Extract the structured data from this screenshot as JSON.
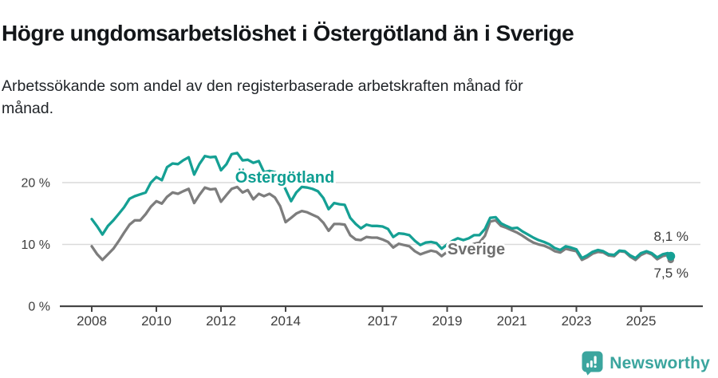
{
  "header": {
    "title": "Högre ungdomsarbetslöshet i Östergötland än i Sverige",
    "subtitle": {
      "lines": [
        "Arbetssökande som andel av den registerbaserade arbetskraften månad för",
        "månad."
      ]
    }
  },
  "chart_data": {
    "type": "line",
    "x_unit": "decimal year (monthly series)",
    "xlim": [
      2008,
      2026.2
    ],
    "ylim": [
      0,
      26
    ],
    "grid": "horizontal-light",
    "x_ticks": [
      {
        "label": "2008",
        "year": 2008
      },
      {
        "label": "2010",
        "year": 2010
      },
      {
        "label": "2012",
        "year": 2012
      },
      {
        "label": "2014",
        "year": 2014
      },
      {
        "label": "2017",
        "year": 2017
      },
      {
        "label": "2019",
        "year": 2019
      },
      {
        "label": "2021",
        "year": 2021
      },
      {
        "label": "2023",
        "year": 2023
      },
      {
        "label": "2025",
        "year": 2025
      }
    ],
    "y_ticks": [
      {
        "label": "0 %",
        "value": 0
      },
      {
        "label": "10 %",
        "value": 10
      },
      {
        "label": "20 %",
        "value": 20
      }
    ],
    "x": [
      2008.0,
      2008.17,
      2008.33,
      2008.5,
      2008.67,
      2008.83,
      2009.0,
      2009.17,
      2009.33,
      2009.5,
      2009.67,
      2009.83,
      2010.0,
      2010.17,
      2010.33,
      2010.5,
      2010.67,
      2010.83,
      2011.0,
      2011.17,
      2011.33,
      2011.5,
      2011.67,
      2011.83,
      2012.0,
      2012.17,
      2012.33,
      2012.5,
      2012.67,
      2012.83,
      2013.0,
      2013.17,
      2013.33,
      2013.5,
      2013.67,
      2013.83,
      2014.0,
      2014.17,
      2014.33,
      2014.5,
      2014.67,
      2014.83,
      2015.0,
      2015.17,
      2015.33,
      2015.5,
      2015.67,
      2015.83,
      2016.0,
      2016.17,
      2016.33,
      2016.5,
      2016.67,
      2016.83,
      2017.0,
      2017.17,
      2017.33,
      2017.5,
      2017.67,
      2017.83,
      2018.0,
      2018.17,
      2018.33,
      2018.5,
      2018.67,
      2018.83,
      2019.0,
      2019.17,
      2019.33,
      2019.5,
      2019.67,
      2019.83,
      2020.0,
      2020.17,
      2020.33,
      2020.5,
      2020.67,
      2020.83,
      2021.0,
      2021.17,
      2021.33,
      2021.5,
      2021.67,
      2021.83,
      2022.0,
      2022.17,
      2022.33,
      2022.5,
      2022.67,
      2022.83,
      2023.0,
      2023.17,
      2023.33,
      2023.5,
      2023.67,
      2023.83,
      2024.0,
      2024.17,
      2024.33,
      2024.5,
      2024.67,
      2024.83,
      2025.0,
      2025.17,
      2025.33,
      2025.5,
      2025.67,
      2025.83,
      2025.92
    ],
    "series": [
      {
        "name": "Östergötland",
        "color": "#15a094",
        "end_label": "8,1 %",
        "end_value": 8.1,
        "values": [
          14.1,
          12.9,
          11.6,
          13.0,
          13.9,
          14.9,
          16.0,
          17.4,
          17.8,
          18.1,
          18.4,
          20.0,
          20.9,
          20.4,
          22.5,
          23.1,
          23.0,
          23.6,
          24.1,
          21.3,
          23.0,
          24.3,
          24.1,
          24.2,
          22.0,
          23.0,
          24.6,
          24.8,
          23.6,
          23.7,
          23.2,
          23.5,
          21.7,
          21.9,
          21.7,
          20.8,
          18.9,
          17.0,
          18.4,
          19.3,
          19.2,
          19.0,
          18.6,
          17.5,
          15.7,
          16.7,
          16.5,
          16.4,
          14.3,
          13.3,
          12.6,
          13.2,
          13.0,
          13.0,
          12.9,
          12.5,
          11.2,
          11.8,
          11.7,
          11.5,
          10.6,
          9.9,
          10.3,
          10.4,
          10.2,
          9.3,
          10.0,
          10.6,
          11.0,
          10.7,
          11.0,
          11.5,
          11.5,
          12.5,
          14.3,
          14.4,
          13.4,
          13.0,
          12.6,
          12.7,
          12.1,
          11.6,
          11.1,
          10.7,
          10.4,
          10.0,
          9.4,
          9.1,
          9.7,
          9.5,
          9.2,
          7.8,
          8.2,
          8.8,
          9.1,
          8.9,
          8.4,
          8.3,
          9.0,
          8.9,
          8.2,
          7.8,
          8.6,
          8.9,
          8.6,
          7.9,
          8.4,
          8.6,
          8.1
        ]
      },
      {
        "name": "Sverige",
        "color": "#7d7d7d",
        "end_label": "7,5 %",
        "end_value": 7.5,
        "values": [
          9.7,
          8.4,
          7.5,
          8.4,
          9.3,
          10.5,
          11.9,
          13.2,
          13.9,
          13.9,
          14.9,
          16.1,
          17.0,
          16.6,
          17.7,
          18.4,
          18.2,
          18.6,
          19.0,
          16.7,
          18.0,
          19.2,
          18.9,
          19.0,
          16.9,
          18.0,
          19.0,
          19.3,
          18.4,
          18.8,
          17.3,
          18.2,
          17.8,
          18.2,
          17.6,
          16.2,
          13.6,
          14.3,
          15.0,
          15.4,
          15.2,
          14.8,
          14.4,
          13.5,
          12.2,
          13.3,
          13.3,
          13.2,
          11.5,
          10.8,
          10.7,
          11.2,
          11.1,
          11.1,
          10.8,
          10.4,
          9.5,
          10.1,
          9.9,
          9.7,
          8.9,
          8.4,
          8.7,
          9.0,
          8.8,
          8.1,
          8.8,
          9.3,
          9.6,
          9.4,
          9.7,
          10.1,
          10.3,
          11.4,
          13.7,
          13.9,
          13.0,
          12.7,
          12.3,
          11.9,
          11.4,
          10.8,
          10.3,
          10.0,
          9.8,
          9.4,
          8.9,
          8.7,
          9.3,
          9.1,
          8.9,
          7.5,
          7.9,
          8.5,
          8.8,
          8.7,
          8.2,
          8.1,
          8.9,
          8.8,
          8.0,
          7.5,
          8.3,
          8.7,
          8.4,
          7.6,
          8.1,
          8.3,
          7.5
        ]
      }
    ]
  },
  "footer": {
    "brand": "Newsworthy",
    "brand_color": "#3ba59e",
    "icon": "newsworthy-bubble-chart-icon"
  }
}
